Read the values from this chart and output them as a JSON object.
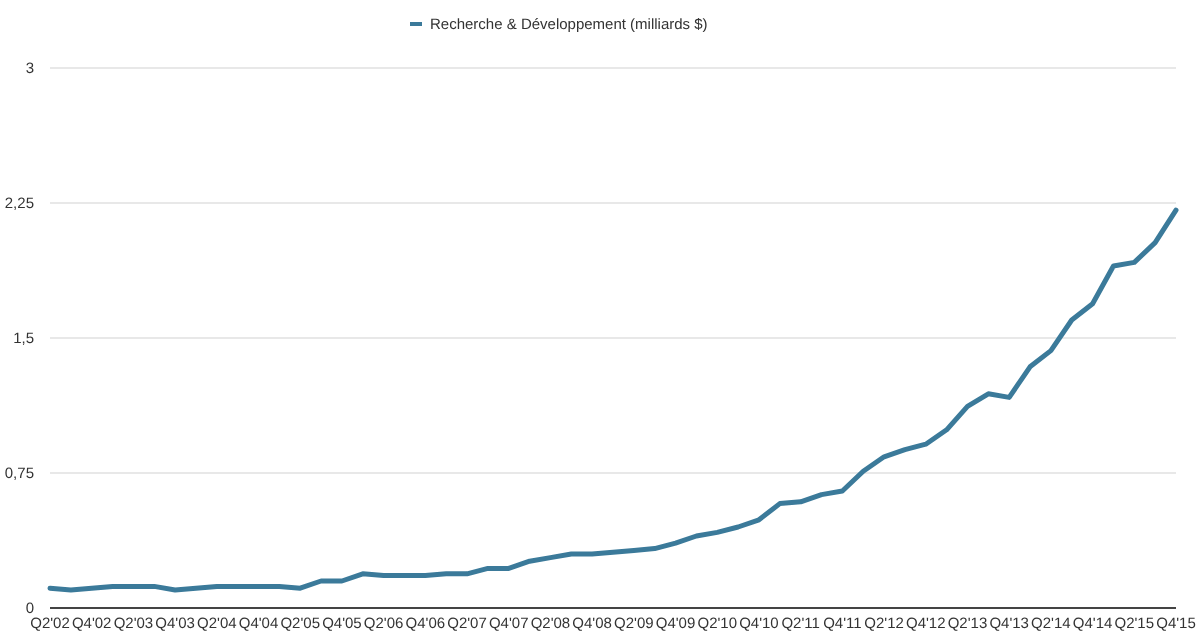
{
  "chart_data": {
    "type": "line",
    "categories": [
      "Q2'02",
      null,
      "Q4'02",
      null,
      "Q2'03",
      null,
      "Q4'03",
      null,
      "Q2'04",
      null,
      "Q4'04",
      null,
      "Q2'05",
      null,
      "Q4'05",
      null,
      "Q2'06",
      null,
      "Q4'06",
      null,
      "Q2'07",
      null,
      "Q4'07",
      null,
      "Q2'08",
      null,
      "Q4'08",
      null,
      "Q2'09",
      null,
      "Q4'09",
      null,
      "Q2'10",
      null,
      "Q4'10",
      null,
      "Q2'11",
      null,
      "Q4'11",
      null,
      "Q2'12",
      null,
      "Q4'12",
      null,
      "Q2'13",
      null,
      "Q4'13",
      null,
      "Q2'14",
      null,
      "Q4'14",
      null,
      "Q2'15",
      null,
      "Q4'15"
    ],
    "series": [
      {
        "name": "Recherche & Développement (milliards $)",
        "color": "#3b7a9a",
        "values": [
          0.11,
          0.1,
          0.11,
          0.12,
          0.12,
          0.12,
          0.1,
          0.11,
          0.12,
          0.12,
          0.12,
          0.12,
          0.11,
          0.15,
          0.15,
          0.19,
          0.18,
          0.18,
          0.18,
          0.19,
          0.19,
          0.22,
          0.22,
          0.26,
          0.28,
          0.3,
          0.3,
          0.31,
          0.32,
          0.33,
          0.36,
          0.4,
          0.42,
          0.45,
          0.49,
          0.58,
          0.59,
          0.63,
          0.65,
          0.76,
          0.84,
          0.88,
          0.91,
          0.99,
          1.12,
          1.19,
          1.17,
          1.34,
          1.43,
          1.6,
          1.69,
          1.9,
          1.92,
          2.03,
          2.21
        ]
      }
    ],
    "ylim": [
      0,
      3
    ],
    "yticks": [
      0,
      {
        "value": 0.75,
        "label": "0,75"
      },
      {
        "value": 1.5,
        "label": "1,5"
      },
      {
        "value": 2.25,
        "label": "2,25"
      },
      3
    ],
    "grid": "y",
    "legend": "top",
    "marker": "none",
    "line_style": "solid"
  }
}
